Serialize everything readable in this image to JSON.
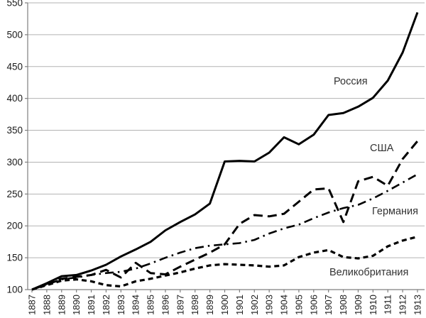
{
  "chart_data": {
    "type": "line",
    "title": "",
    "xlabel": "",
    "ylabel": "",
    "x": [
      1887,
      1888,
      1889,
      1890,
      1891,
      1892,
      1893,
      1894,
      1895,
      1896,
      1897,
      1898,
      1899,
      1900,
      1901,
      1902,
      1903,
      1904,
      1905,
      1906,
      1907,
      1908,
      1909,
      1910,
      1911,
      1912,
      1913
    ],
    "ylim": [
      100,
      550
    ],
    "yticks": [
      100,
      150,
      200,
      250,
      300,
      350,
      400,
      450,
      500,
      550
    ],
    "grid": "horizontal",
    "legend_position": "inline-labels",
    "series": [
      {
        "name": "Россия",
        "style": "solid",
        "values": [
          100,
          110,
          121,
          123,
          130,
          139,
          152,
          163,
          175,
          193,
          206,
          218,
          235,
          301,
          302,
          301,
          315,
          339,
          328,
          343,
          374,
          377,
          387,
          401,
          428,
          472,
          535
        ],
        "label_pos": {
          "x": 470,
          "y": 119
        }
      },
      {
        "name": "США",
        "style": "long-dash",
        "values": [
          100,
          109,
          117,
          120,
          123,
          131,
          119,
          142,
          126,
          124,
          136,
          147,
          158,
          171,
          203,
          217,
          215,
          219,
          238,
          257,
          259,
          206,
          270,
          277,
          263,
          305,
          333
        ],
        "label_pos": {
          "x": 521,
          "y": 213
        }
      },
      {
        "name": "Германия",
        "style": "dash-dot",
        "values": [
          100,
          108,
          116,
          119,
          123,
          126,
          128,
          133,
          141,
          150,
          158,
          165,
          169,
          171,
          173,
          178,
          188,
          196,
          202,
          212,
          221,
          228,
          233,
          243,
          255,
          268,
          281
        ],
        "label_pos": {
          "x": 524,
          "y": 302
        }
      },
      {
        "name": "Великобритания",
        "style": "short-dash",
        "values": [
          100,
          107,
          114,
          116,
          113,
          107,
          105,
          113,
          117,
          122,
          127,
          133,
          138,
          140,
          139,
          138,
          136,
          138,
          151,
          158,
          162,
          151,
          149,
          153,
          168,
          177,
          183
        ],
        "label_pos": {
          "x": 464,
          "y": 388
        }
      }
    ],
    "colors": {
      "line": "#000000",
      "grid": "#b3b3b3",
      "axis": "#7f7f7f",
      "text": "#1a1a1a",
      "background": "#ffffff"
    }
  }
}
